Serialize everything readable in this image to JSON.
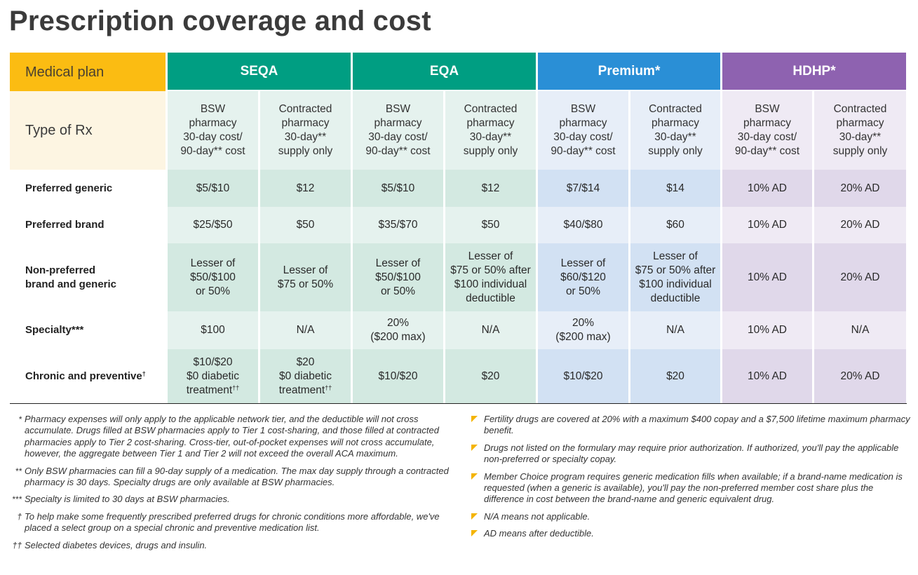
{
  "title": "Prescription coverage and cost",
  "table": {
    "plan_label": "Medical plan",
    "type_label": "Type of Rx",
    "plans": [
      "SEQA",
      "EQA",
      "Premium*",
      "HDHP*"
    ],
    "subheaders": {
      "bsw": "BSW\npharmacy\n30-day cost/\n90-day** cost",
      "contracted": "Contracted\npharmacy\n30-day**\nsupply only"
    },
    "rows": [
      {
        "label": "Preferred generic",
        "cells": [
          "$5/$10",
          "$12",
          "$5/$10",
          "$12",
          "$7/$14",
          "$14",
          "10% AD",
          "20% AD"
        ]
      },
      {
        "label": "Preferred brand",
        "cells": [
          "$25/$50",
          "$50",
          "$35/$70",
          "$50",
          "$40/$80",
          "$60",
          "10% AD",
          "20% AD"
        ]
      },
      {
        "label": "Non-preferred\nbrand and generic",
        "cells": [
          "Lesser of\n$50/$100\nor 50%",
          "Lesser of\n$75 or 50%",
          "Lesser of\n$50/$100\nor 50%",
          "Lesser of\n$75 or 50% after\n$100 individual\ndeductible",
          "Lesser of\n$60/$120\nor 50%",
          "Lesser of\n$75 or 50% after\n$100 individual\ndeductible",
          "10% AD",
          "20% AD"
        ]
      },
      {
        "label": "Specialty***",
        "cells": [
          "$100",
          "N/A",
          "20%\n($200 max)",
          "N/A",
          "20%\n($200 max)",
          "N/A",
          "10% AD",
          "N/A"
        ]
      },
      {
        "label": "Chronic and preventive",
        "label_sup": "†",
        "cells": [
          "$10/$20\n$0 diabetic\ntreatment",
          "$20\n$0 diabetic\ntreatment",
          "$10/$20",
          "$20",
          "$10/$20",
          "$20",
          "10% AD",
          "20% AD"
        ],
        "cell_sup": "††"
      }
    ]
  },
  "footnotes_left": [
    {
      "mark": "*",
      "text": "Pharmacy expenses will only apply to the applicable network tier, and the deductible will not cross accumulate. Drugs filled at BSW pharmacies apply to Tier 1 cost-sharing, and those filled at contracted pharmacies apply to Tier 2 cost-sharing. Cross-tier, out-of-pocket expenses will not cross accumulate, however, the aggregate between Tier 1 and Tier 2 will not exceed the overall ACA maximum."
    },
    {
      "mark": "**",
      "text": "Only BSW pharmacies can fill a 90-day supply of a medication. The max day supply through a contracted pharmacy is 30 days. Specialty drugs are only available at BSW pharmacies."
    },
    {
      "mark": "***",
      "text": "Specialty is limited to 30 days at BSW pharmacies."
    },
    {
      "mark": "†",
      "text": "To help make some frequently prescribed preferred drugs for chronic conditions more affordable, we've placed a select group on a special chronic and preventive medication list."
    },
    {
      "mark": "††",
      "text": "Selected diabetes devices, drugs and insulin."
    }
  ],
  "footnotes_right": [
    "Fertility drugs are covered at 20% with a maximum $400 copay and a $7,500 lifetime maximum pharmacy benefit.",
    "Drugs not listed on the formulary may require prior authorization. If authorized, you'll pay the applicable non-preferred or specialty copay.",
    "Member Choice program requires generic medication fills when available; if a brand-name medication is requested (when a generic is available), you'll pay the non-preferred member cost share plus the difference in cost between the brand-name and generic equivalent drug.",
    "N/A means not applicable.",
    "AD means after deductible."
  ],
  "colors": {
    "medical_plan": "#fbbc12",
    "seqa": "#009e82",
    "eqa": "#009e82",
    "premium": "#2a8fd6",
    "hdhp": "#8e62b0",
    "bullet": "#f4b400"
  }
}
